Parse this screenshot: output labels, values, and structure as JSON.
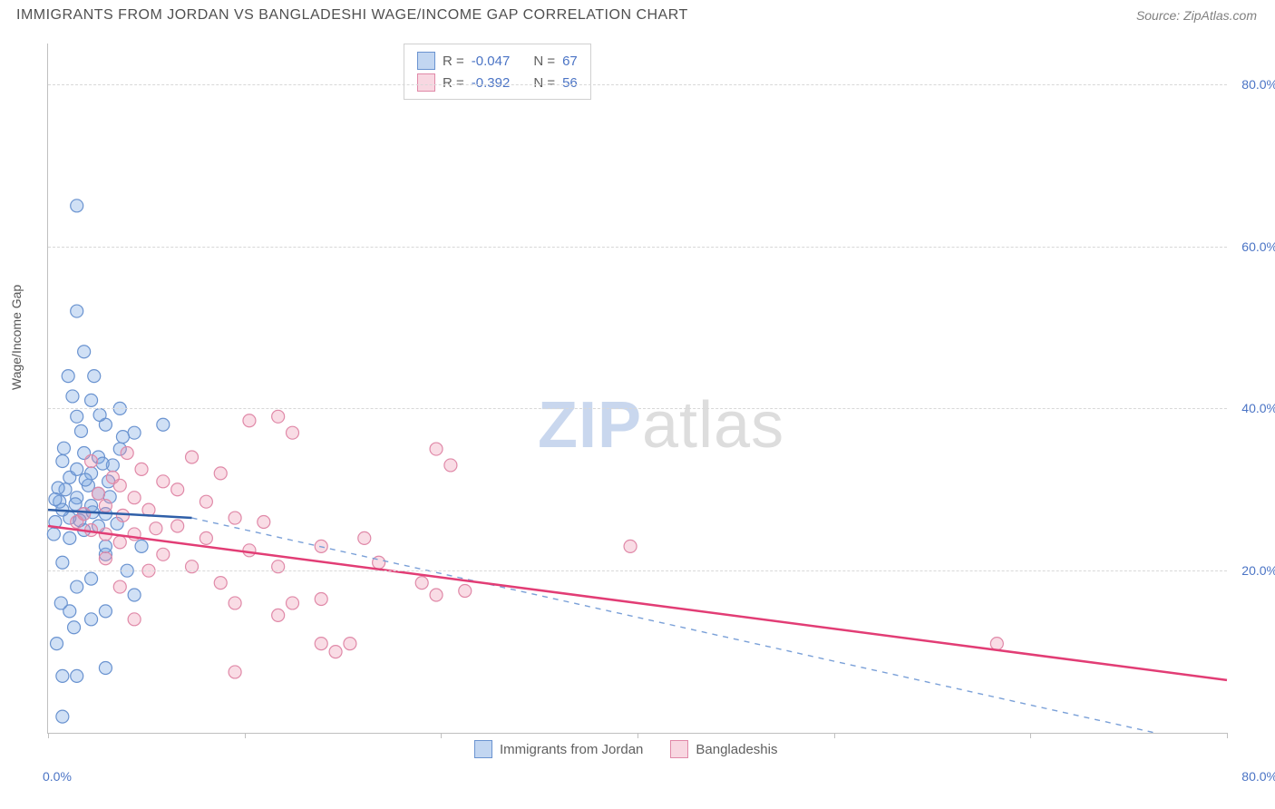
{
  "header": {
    "title": "IMMIGRANTS FROM JORDAN VS BANGLADESHI WAGE/INCOME GAP CORRELATION CHART",
    "source": "Source: ZipAtlas.com"
  },
  "axis": {
    "ylabel": "Wage/Income Gap",
    "ylim": [
      0,
      85
    ],
    "yticks": [
      20,
      40,
      60,
      80
    ],
    "yticklabels": [
      "20.0%",
      "40.0%",
      "60.0%",
      "80.0%"
    ],
    "xlim": [
      0,
      82
    ],
    "xticks": [
      0,
      13.7,
      27.3,
      41,
      54.7,
      68.3,
      82
    ],
    "x_origin_label": "0.0%",
    "x_max_label": "80.0%",
    "grid_color": "#d8d8d8",
    "axis_color": "#c0c0c0",
    "tick_color": "#4b74c5",
    "label_color": "#555555"
  },
  "watermark": {
    "part1": "ZIP",
    "part2": "atlas"
  },
  "stat_legend": {
    "rows": [
      {
        "swatch": "blue",
        "r_label": "R =",
        "r_value": "-0.047",
        "n_label": "N =",
        "n_value": "67"
      },
      {
        "swatch": "pink",
        "r_label": "R =",
        "r_value": "-0.392",
        "n_label": "N =",
        "n_value": "56"
      }
    ]
  },
  "bottom_legend": {
    "items": [
      {
        "swatch": "blue",
        "label": "Immigrants from Jordan"
      },
      {
        "swatch": "pink",
        "label": "Bangladeshis"
      }
    ]
  },
  "series": {
    "blue": {
      "marker_fill": "rgba(120,165,225,0.35)",
      "marker_stroke": "#6a93d0",
      "marker_radius": 7,
      "line_solid_color": "#2f5fa8",
      "line_dash_color": "#7aa0d8",
      "trend_solid": {
        "x1": 0,
        "y1": 27.5,
        "x2": 10,
        "y2": 26.5
      },
      "trend_dash": {
        "x1": 10,
        "y1": 26.5,
        "x2": 77,
        "y2": 0
      },
      "points": [
        [
          1,
          2
        ],
        [
          1,
          7
        ],
        [
          2,
          7
        ],
        [
          4,
          8
        ],
        [
          3,
          14
        ],
        [
          1.5,
          15
        ],
        [
          4,
          15
        ],
        [
          6,
          17
        ],
        [
          2,
          18
        ],
        [
          3,
          19
        ],
        [
          1,
          21
        ],
        [
          4,
          22
        ],
        [
          4,
          23
        ],
        [
          1.5,
          24
        ],
        [
          2.5,
          25
        ],
        [
          3.5,
          25.5
        ],
        [
          0.5,
          26
        ],
        [
          1.5,
          26.5
        ],
        [
          2.5,
          27
        ],
        [
          4,
          27
        ],
        [
          1,
          27.5
        ],
        [
          3,
          28
        ],
        [
          0.8,
          28.5
        ],
        [
          2,
          29
        ],
        [
          3.5,
          29.5
        ],
        [
          1.2,
          30
        ],
        [
          2.8,
          30.5
        ],
        [
          4.2,
          31
        ],
        [
          1.5,
          31.5
        ],
        [
          3,
          32
        ],
        [
          2,
          32.5
        ],
        [
          4.5,
          33
        ],
        [
          1,
          33.5
        ],
        [
          3.5,
          34
        ],
        [
          2.5,
          34.5
        ],
        [
          5,
          35
        ],
        [
          6,
          37
        ],
        [
          4,
          38
        ],
        [
          8,
          38
        ],
        [
          2,
          39
        ],
        [
          5,
          40
        ],
        [
          3,
          41
        ],
        [
          1.4,
          44
        ],
        [
          3.2,
          44
        ],
        [
          2.5,
          47
        ],
        [
          2,
          52
        ],
        [
          2,
          65
        ],
        [
          0.6,
          11
        ],
        [
          1.8,
          13
        ],
        [
          0.9,
          16
        ],
        [
          5.5,
          20
        ],
        [
          6.5,
          23
        ],
        [
          0.4,
          24.5
        ],
        [
          4.8,
          25.8
        ],
        [
          2.2,
          26.2
        ],
        [
          3.1,
          27.2
        ],
        [
          1.9,
          28.2
        ],
        [
          4.3,
          29.1
        ],
        [
          0.7,
          30.2
        ],
        [
          2.6,
          31.2
        ],
        [
          3.8,
          33.2
        ],
        [
          1.1,
          35.1
        ],
        [
          5.2,
          36.5
        ],
        [
          2.3,
          37.2
        ],
        [
          3.6,
          39.2
        ],
        [
          1.7,
          41.5
        ],
        [
          0.5,
          28.8
        ]
      ]
    },
    "pink": {
      "marker_fill": "rgba(235,140,170,0.30)",
      "marker_stroke": "#e089a8",
      "marker_radius": 7,
      "line_color": "#e23d75",
      "trend": {
        "x1": 0,
        "y1": 25.5,
        "x2": 82,
        "y2": 6.5
      },
      "points": [
        [
          13,
          7.5
        ],
        [
          20,
          10
        ],
        [
          19,
          11
        ],
        [
          21,
          11
        ],
        [
          6,
          14
        ],
        [
          16,
          14.5
        ],
        [
          13,
          16
        ],
        [
          17,
          16
        ],
        [
          19,
          16.5
        ],
        [
          27,
          17
        ],
        [
          29,
          17.5
        ],
        [
          5,
          18
        ],
        [
          12,
          18.5
        ],
        [
          26,
          18.5
        ],
        [
          7,
          20
        ],
        [
          10,
          20.5
        ],
        [
          16,
          20.5
        ],
        [
          23,
          21
        ],
        [
          4,
          21.5
        ],
        [
          8,
          22
        ],
        [
          14,
          22.5
        ],
        [
          19,
          23
        ],
        [
          40.5,
          23
        ],
        [
          5,
          23.5
        ],
        [
          11,
          24
        ],
        [
          22,
          24
        ],
        [
          6,
          24.5
        ],
        [
          3,
          25
        ],
        [
          9,
          25.5
        ],
        [
          15,
          26
        ],
        [
          13,
          26.5
        ],
        [
          2.5,
          27
        ],
        [
          7,
          27.5
        ],
        [
          4,
          28
        ],
        [
          11,
          28.5
        ],
        [
          6,
          29
        ],
        [
          3.5,
          29.5
        ],
        [
          9,
          30
        ],
        [
          5,
          30.5
        ],
        [
          8,
          31
        ],
        [
          4.5,
          31.5
        ],
        [
          12,
          32
        ],
        [
          6.5,
          32.5
        ],
        [
          28,
          33
        ],
        [
          3,
          33.5
        ],
        [
          10,
          34
        ],
        [
          5.5,
          34.5
        ],
        [
          27,
          35
        ],
        [
          17,
          37
        ],
        [
          14,
          38.5
        ],
        [
          16,
          39
        ],
        [
          66,
          11
        ],
        [
          2,
          26
        ],
        [
          4,
          24.5
        ],
        [
          7.5,
          25.2
        ],
        [
          5.2,
          26.8
        ]
      ]
    }
  },
  "style": {
    "background": "#ffffff",
    "title_color": "#505050",
    "source_color": "#808080",
    "fontsize_title": 16,
    "fontsize_axis": 14,
    "fontsize_legend": 15
  }
}
